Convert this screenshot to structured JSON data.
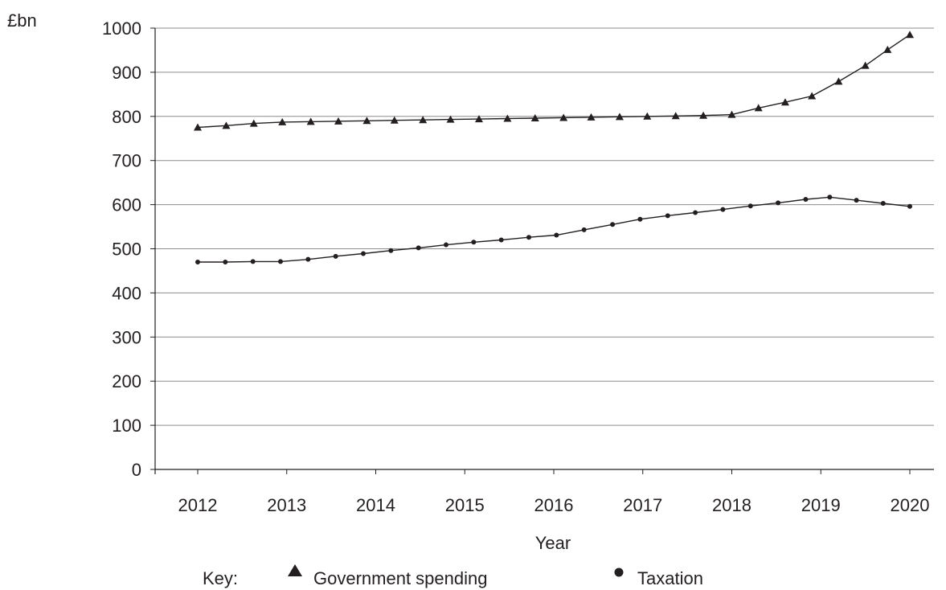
{
  "chart_data": {
    "type": "line",
    "ylabel": "£bn",
    "xlabel": "Year",
    "ylim": [
      0,
      1000
    ],
    "yticks": [
      "0",
      "100",
      "200",
      "300",
      "400",
      "500",
      "600",
      "700",
      "800",
      "900",
      "1000"
    ],
    "xlim": [
      2012,
      2020
    ],
    "xticks": [
      "2012",
      "2013",
      "2014",
      "2015",
      "2016",
      "2017",
      "2018",
      "2019",
      "2020"
    ],
    "grid": true,
    "legend": {
      "title": "Key:",
      "placement": "bottom"
    },
    "series": [
      {
        "name": "Government spending",
        "marker": "triangle",
        "color": "#231f20",
        "x": [
          2012,
          2012.32,
          2012.63,
          2012.95,
          2013.27,
          2013.58,
          2013.9,
          2014.21,
          2014.53,
          2014.84,
          2015.16,
          2015.48,
          2015.79,
          2016.11,
          2016.42,
          2016.74,
          2017.05,
          2017.37,
          2017.68,
          2018,
          2018.3,
          2018.6,
          2018.9,
          2019.2,
          2019.5,
          2019.75,
          2020
        ],
        "y": [
          775,
          779,
          784,
          787,
          788,
          789,
          790,
          791,
          792,
          793,
          794,
          795,
          796,
          797,
          798,
          799,
          800,
          801,
          802,
          804,
          819,
          832,
          846,
          879,
          915,
          951,
          985
        ]
      },
      {
        "name": "Taxation",
        "marker": "circle",
        "color": "#231f20",
        "x": [
          2012,
          2012.31,
          2012.62,
          2012.93,
          2013.24,
          2013.55,
          2013.86,
          2014.17,
          2014.48,
          2014.79,
          2015.1,
          2015.41,
          2015.72,
          2016.03,
          2016.34,
          2016.66,
          2016.97,
          2017.28,
          2017.59,
          2017.9,
          2018.21,
          2018.52,
          2018.83,
          2019.1,
          2019.4,
          2019.7,
          2020
        ],
        "y": [
          470,
          470,
          471,
          471,
          476,
          483,
          489,
          496,
          502,
          509,
          515,
          520,
          526,
          531,
          543,
          555,
          567,
          575,
          582,
          589,
          597,
          604,
          612,
          617,
          610,
          603,
          596
        ]
      }
    ]
  }
}
